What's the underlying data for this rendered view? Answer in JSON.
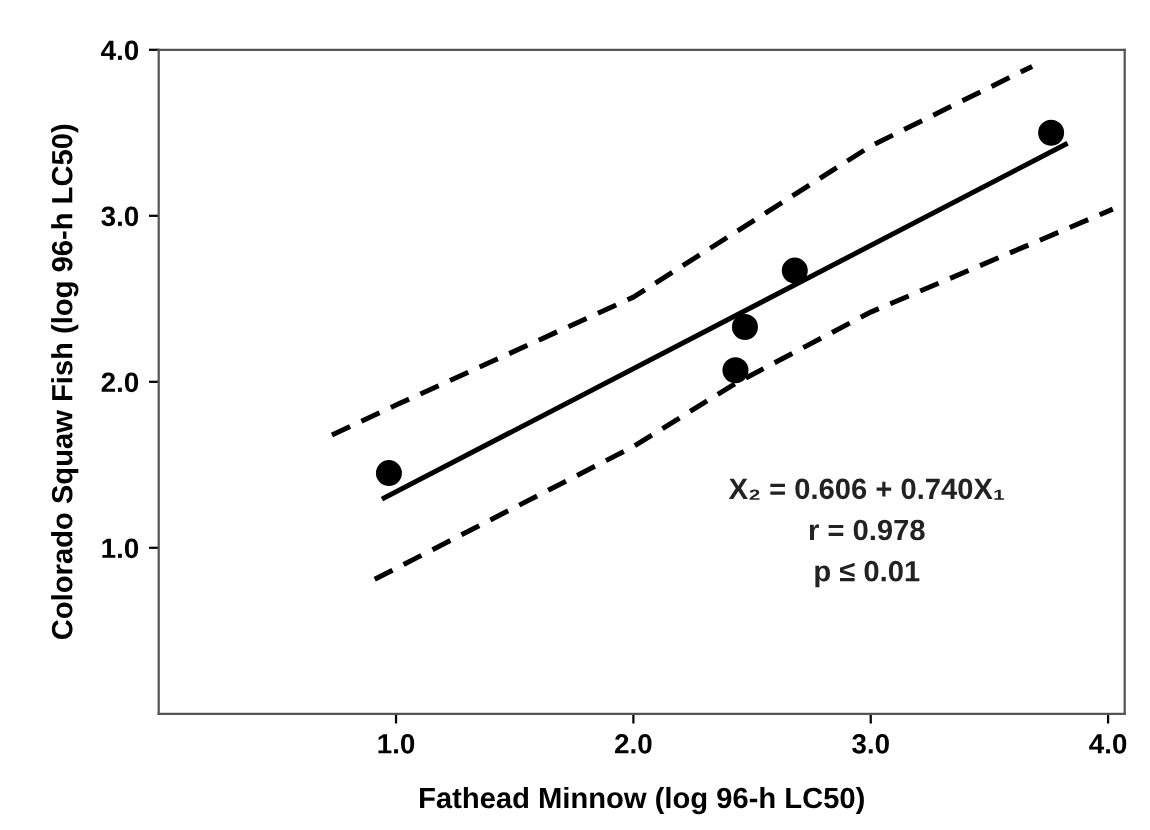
{
  "chart_data": {
    "type": "scatter",
    "xlabel": "Fathead Minnow (log 96-h LC50)",
    "ylabel": "Colorado Squaw Fish (log 96-h LC50)",
    "xlim": [
      0.0,
      4.07
    ],
    "ylim": [
      0.0,
      4.0
    ],
    "xticks": [
      {
        "value": 1,
        "label": "1.0"
      },
      {
        "value": 2,
        "label": "2.0"
      },
      {
        "value": 3,
        "label": "3.0"
      },
      {
        "value": 4,
        "label": "4.0"
      }
    ],
    "yticks": [
      {
        "value": 1,
        "label": "1.0"
      },
      {
        "value": 2,
        "label": "2.0"
      },
      {
        "value": 3,
        "label": "3.0"
      },
      {
        "value": 4,
        "label": "4.0"
      }
    ],
    "grid": false,
    "legend": false,
    "series": [
      {
        "color": "#000000",
        "marker": "circle",
        "x": [
          0.97,
          2.43,
          2.47,
          2.68,
          3.76
        ],
        "values": [
          1.45,
          2.07,
          2.33,
          2.67,
          3.5
        ]
      },
      {
        "type": "line",
        "color": "#000000",
        "line_style": "solid",
        "marker": "none",
        "x": [
          0.95,
          3.82
        ],
        "values": [
          1.3,
          3.43
        ]
      },
      {
        "type": "line",
        "color": "#000000",
        "line_style": "dashed",
        "marker": "none",
        "x": [
          0.73,
          1.0,
          2.0,
          3.0,
          3.68
        ],
        "values": [
          1.68,
          1.86,
          2.51,
          3.42,
          3.9
        ]
      },
      {
        "type": "line",
        "color": "#000000",
        "line_style": "dashed",
        "marker": "none",
        "x": [
          0.91,
          2.0,
          2.43,
          3.0,
          4.02
        ],
        "values": [
          0.81,
          1.61,
          1.99,
          2.42,
          3.04
        ]
      }
    ],
    "annotations": [
      "X₂ = 0.606 + 0.740X₁",
      "r = 0.978",
      "p ≤ 0.01"
    ]
  }
}
